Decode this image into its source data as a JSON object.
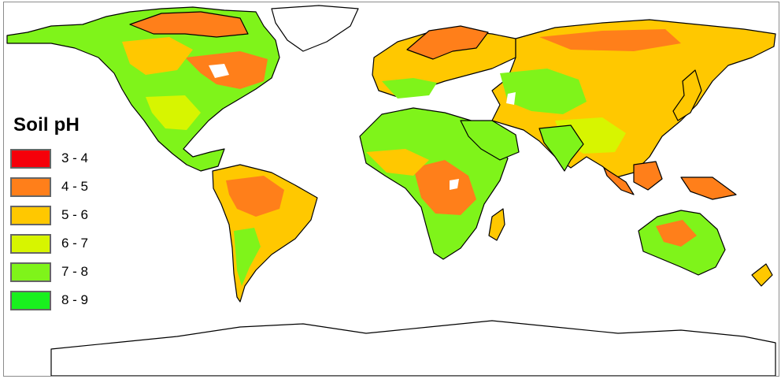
{
  "legend": {
    "title": "Soil pH",
    "items": [
      {
        "label": "3 - 4",
        "color": "#f5000a"
      },
      {
        "label": "4 - 5",
        "color": "#ff7f1a"
      },
      {
        "label": "5 - 6",
        "color": "#ffc800"
      },
      {
        "label": "6 - 7",
        "color": "#d7f500"
      },
      {
        "label": "7 - 8",
        "color": "#7ff41a"
      },
      {
        "label": "8 - 9",
        "color": "#19f01e"
      }
    ]
  },
  "map": {
    "colors": {
      "ocean": "#ffffff",
      "outline": "#000000",
      "ice": "#ffffff"
    }
  }
}
